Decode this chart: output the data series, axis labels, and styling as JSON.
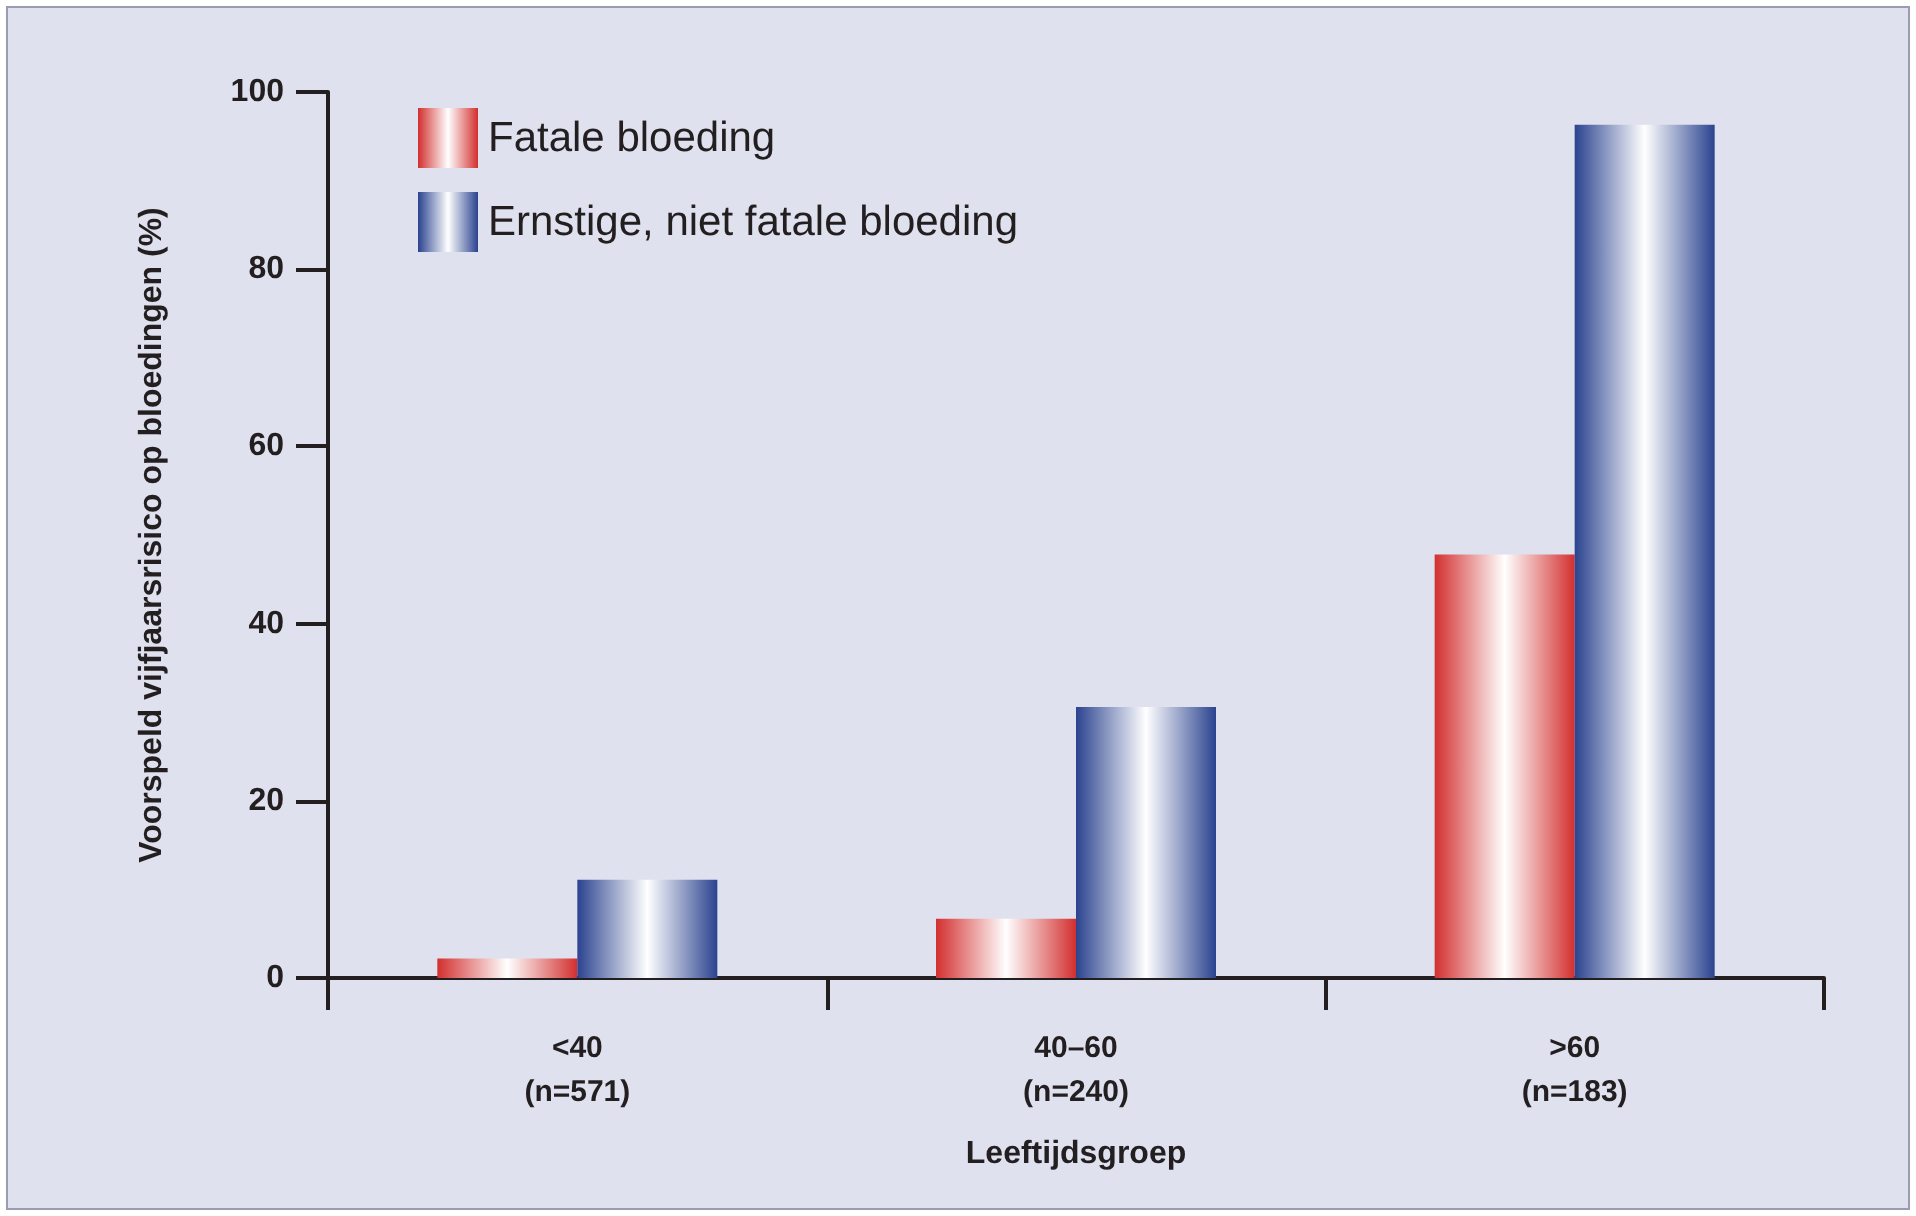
{
  "chart_data": {
    "type": "bar",
    "xlabel": "Leeftijdsgroep",
    "ylabel": "Voorspeld vijfjaarsrisico op bloedingen (%)",
    "categories": [
      "<40\n(n=571)",
      "40–60\n(n=240)",
      ">60\n(n=183)"
    ],
    "series": [
      {
        "name": "Fatale bloeding",
        "color": "#d32f2f",
        "values": [
          2.2,
          6.7,
          47.8
        ]
      },
      {
        "name": "Ernstige, niet fatale bloeding",
        "color": "#2b438f",
        "values": [
          11.1,
          30.6,
          96.3
        ]
      }
    ],
    "ylim": [
      0,
      100
    ],
    "yticks": [
      0,
      20,
      40,
      60,
      80,
      100
    ],
    "grid": false,
    "legend": "top left"
  }
}
